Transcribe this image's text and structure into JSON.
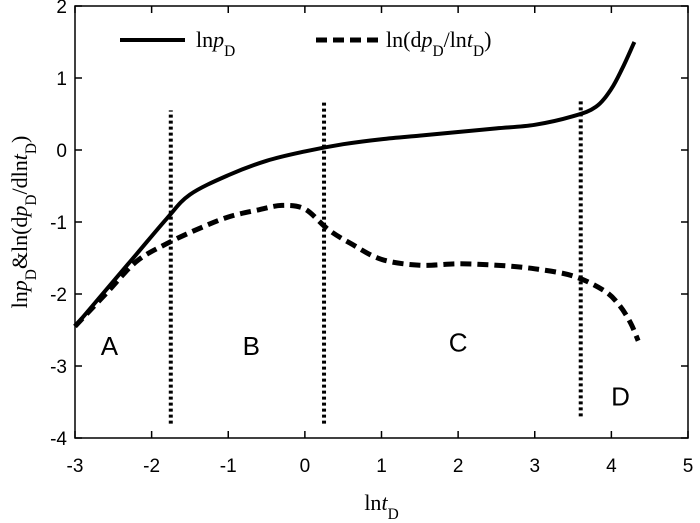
{
  "chart_data": {
    "type": "line",
    "title": "",
    "xlabel": {
      "base": "ln",
      "italic": "t",
      "sub": "D"
    },
    "ylabel": {
      "parts": [
        {
          "text": "ln",
          "italic": false
        },
        {
          "text": "p",
          "italic": true
        },
        {
          "text": "D",
          "sub": true
        },
        {
          "text": "&ln(d",
          "italic": false
        },
        {
          "text": "p",
          "italic": true
        },
        {
          "text": "D",
          "sub": true
        },
        {
          "text": "/dln",
          "italic": false
        },
        {
          "text": "t",
          "italic": true
        },
        {
          "text": "D",
          "sub": true
        },
        {
          "text": ")",
          "italic": false
        }
      ]
    },
    "xlim": [
      -3,
      5
    ],
    "ylim": [
      -4,
      2
    ],
    "xticks": [
      -3,
      -2,
      -1,
      0,
      1,
      2,
      3,
      4,
      5
    ],
    "yticks": [
      -4,
      -3,
      -2,
      -1,
      0,
      1,
      2
    ],
    "grid": false,
    "legend_position": "top",
    "series": [
      {
        "name": "lnpD",
        "legend": [
          {
            "text": "ln"
          },
          {
            "text": "p",
            "italic": true
          },
          {
            "text": "D",
            "sub": true
          }
        ],
        "style": "solid",
        "x": [
          -3.0,
          -2.6,
          -2.2,
          -1.8,
          -1.5,
          -1.0,
          -0.5,
          0.0,
          0.5,
          1.0,
          1.5,
          2.0,
          2.5,
          3.0,
          3.5,
          3.8,
          4.0,
          4.15,
          4.3
        ],
        "y": [
          -2.45,
          -1.95,
          -1.45,
          -0.95,
          -0.62,
          -0.35,
          -0.15,
          -0.02,
          0.08,
          0.15,
          0.2,
          0.25,
          0.3,
          0.35,
          0.47,
          0.6,
          0.85,
          1.15,
          1.5
        ]
      },
      {
        "name": "ln(dpD/lntD)",
        "legend": [
          {
            "text": "ln(d"
          },
          {
            "text": "p",
            "italic": true
          },
          {
            "text": "D",
            "sub": true
          },
          {
            "text": "/ln"
          },
          {
            "text": "t",
            "italic": true
          },
          {
            "text": "D",
            "sub": true
          },
          {
            "text": ")"
          }
        ],
        "style": "dashed",
        "x": [
          -3.0,
          -2.6,
          -2.2,
          -1.8,
          -1.4,
          -1.0,
          -0.6,
          -0.3,
          0.0,
          0.3,
          0.6,
          1.0,
          1.5,
          2.0,
          2.5,
          3.0,
          3.5,
          3.9,
          4.1,
          4.25,
          4.35
        ],
        "y": [
          -2.45,
          -2.0,
          -1.55,
          -1.3,
          -1.1,
          -0.93,
          -0.83,
          -0.77,
          -0.82,
          -1.1,
          -1.3,
          -1.52,
          -1.6,
          -1.58,
          -1.6,
          -1.65,
          -1.75,
          -1.95,
          -2.15,
          -2.4,
          -2.65
        ]
      }
    ],
    "vertical_lines": [
      {
        "x": -1.75,
        "y1": -3.8,
        "y2": 0.55
      },
      {
        "x": 0.25,
        "y1": -3.8,
        "y2": 0.7
      },
      {
        "x": 3.6,
        "y1": -3.7,
        "y2": 0.68
      }
    ],
    "regions": [
      {
        "label": "A",
        "x": -2.55,
        "y": -2.85
      },
      {
        "label": "B",
        "x": -0.7,
        "y": -2.85
      },
      {
        "label": "C",
        "x": 2.0,
        "y": -2.8
      },
      {
        "label": "D",
        "x": 4.12,
        "y": -3.55
      }
    ]
  }
}
